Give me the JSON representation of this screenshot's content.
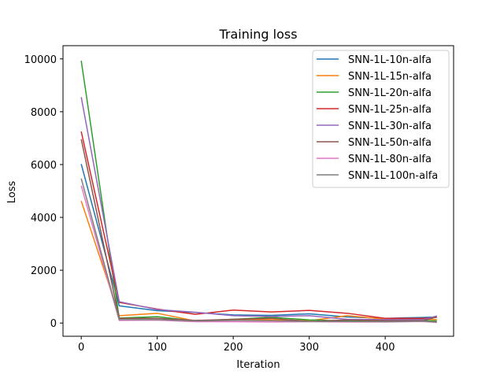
{
  "chart_data": {
    "type": "line",
    "title": "Training loss",
    "xlabel": "Iteration",
    "ylabel": "Loss",
    "xlim": [
      -24,
      490
    ],
    "ylim": [
      -500,
      10500
    ],
    "xticks": [
      0,
      100,
      200,
      300,
      400
    ],
    "yticks": [
      0,
      2000,
      4000,
      6000,
      8000,
      10000
    ],
    "legend_position": "top-right",
    "grid": false,
    "x": [
      0,
      50,
      100,
      150,
      200,
      250,
      300,
      350,
      400,
      450,
      468
    ],
    "series": [
      {
        "name": "SNN-1L-10n-alfa",
        "color": "#1f77b4",
        "values": [
          6020,
          650,
          470,
          400,
          310,
          290,
          350,
          230,
          180,
          210,
          230
        ]
      },
      {
        "name": "SNN-1L-15n-alfa",
        "color": "#ff7f0e",
        "values": [
          4620,
          280,
          370,
          80,
          140,
          130,
          90,
          280,
          150,
          150,
          130
        ]
      },
      {
        "name": "SNN-1L-20n-alfa",
        "color": "#2ca02c",
        "values": [
          9930,
          190,
          240,
          80,
          140,
          220,
          120,
          80,
          90,
          90,
          80
        ]
      },
      {
        "name": "SNN-1L-25n-alfa",
        "color": "#d62728",
        "values": [
          7250,
          780,
          530,
          330,
          490,
          420,
          480,
          370,
          180,
          180,
          220
        ]
      },
      {
        "name": "SNN-1L-30n-alfa",
        "color": "#9467bd",
        "values": [
          8550,
          810,
          510,
          410,
          280,
          250,
          280,
          140,
          130,
          130,
          270
        ]
      },
      {
        "name": "SNN-1L-50n-alfa",
        "color": "#8c564b",
        "values": [
          6960,
          180,
          180,
          100,
          140,
          180,
          60,
          120,
          90,
          90,
          230
        ]
      },
      {
        "name": "SNN-1L-80n-alfa",
        "color": "#e377c2",
        "values": [
          5200,
          100,
          110,
          50,
          50,
          40,
          50,
          40,
          40,
          60,
          20
        ]
      },
      {
        "name": "SNN-1L-100n-alfa",
        "color": "#7f7f7f",
        "values": [
          5470,
          130,
          130,
          80,
          100,
          90,
          60,
          60,
          50,
          70,
          40
        ]
      }
    ]
  }
}
